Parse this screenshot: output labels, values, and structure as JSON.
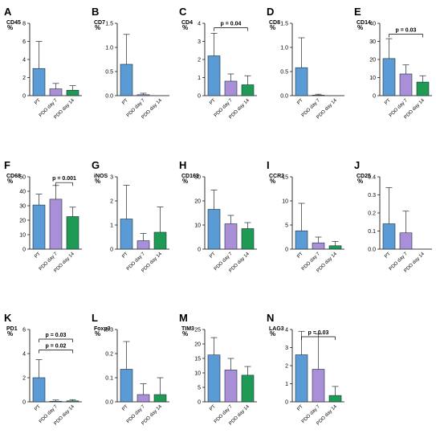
{
  "colors": {
    "PT": "#5b9bd5",
    "PDO day 7": "#a98ed8",
    "PDO day 14": "#1e9a55",
    "outline": "#1f2d3a",
    "axis": "#000000"
  },
  "chart_data": [
    {
      "letter": "A",
      "title": "CD45",
      "type": "bar",
      "ylabel": "%",
      "categories": [
        "PT",
        "PDO day 7",
        "PDO day 14"
      ],
      "ylim": [
        0,
        8
      ],
      "ticks": [
        0,
        2,
        4,
        6,
        8
      ],
      "values": [
        3.0,
        0.75,
        0.6
      ],
      "errors": [
        3.0,
        0.6,
        0.5
      ],
      "sig": []
    },
    {
      "letter": "B",
      "title": "CD7",
      "type": "bar",
      "ylabel": "%",
      "categories": [
        "PT",
        "PDO day 7",
        "PDO day 14"
      ],
      "ylim": [
        0,
        1.5
      ],
      "ticks": [
        "0.0",
        "0.5",
        "1.0",
        "1.5"
      ],
      "values": [
        0.65,
        0.02,
        0.0
      ],
      "errors": [
        0.62,
        0.03,
        0.0
      ],
      "sig": []
    },
    {
      "letter": "C",
      "title": "CD4",
      "type": "bar",
      "ylabel": "%",
      "categories": [
        "PT",
        "PDO day 7",
        "PDO day 14"
      ],
      "ylim": [
        0,
        4
      ],
      "ticks": [
        0,
        1,
        2,
        3,
        4
      ],
      "values": [
        2.2,
        0.8,
        0.6
      ],
      "errors": [
        1.25,
        0.4,
        0.5
      ],
      "sig": [
        {
          "label": "p = 0.04",
          "from": 0,
          "to": 2,
          "y": 3.75
        }
      ]
    },
    {
      "letter": "D",
      "title": "CD8",
      "type": "bar",
      "ylabel": "%",
      "categories": [
        "PT",
        "PDO day 7",
        "PDO day 14"
      ],
      "ylim": [
        0,
        1.5
      ],
      "ticks": [
        "0.0",
        "0.5",
        "1.0",
        "1.5"
      ],
      "values": [
        0.58,
        0.01,
        0.0
      ],
      "errors": [
        0.62,
        0.02,
        0.0
      ],
      "sig": []
    },
    {
      "letter": "E",
      "title": "CD14",
      "type": "bar",
      "ylabel": "%",
      "categories": [
        "PT",
        "PDO day 7",
        "PDO day 14"
      ],
      "ylim": [
        0,
        40
      ],
      "ticks": [
        0,
        10,
        20,
        30,
        40
      ],
      "values": [
        20.5,
        12.0,
        7.5
      ],
      "errors": [
        11.0,
        5.0,
        3.5
      ],
      "sig": [
        {
          "label": "p = 0.03",
          "from": 0,
          "to": 2,
          "y": 34
        }
      ]
    },
    {
      "letter": "F",
      "title": "CD68",
      "type": "bar",
      "ylabel": "%",
      "categories": [
        "PT",
        "PDO day 7",
        "PDO day 14"
      ],
      "ylim": [
        0,
        50
      ],
      "ticks": [
        0,
        10,
        20,
        30,
        40,
        50
      ],
      "values": [
        30.5,
        34.5,
        22.5
      ],
      "errors": [
        7.5,
        9.5,
        6.5
      ],
      "sig": [
        {
          "label": "p = 0.001",
          "from": 1,
          "to": 2,
          "y": 46
        }
      ]
    },
    {
      "letter": "G",
      "title": "iNOS",
      "type": "bar",
      "ylabel": "%",
      "categories": [
        "PT",
        "PDO day 7",
        "PDO day 14"
      ],
      "ylim": [
        0,
        3
      ],
      "ticks": [
        0,
        1,
        2,
        3
      ],
      "values": [
        1.25,
        0.35,
        0.7
      ],
      "errors": [
        1.4,
        0.3,
        1.05
      ],
      "sig": []
    },
    {
      "letter": "H",
      "title": "CD163",
      "type": "bar",
      "ylabel": "%",
      "categories": [
        "PT",
        "PDO day 7",
        "PDO day 14"
      ],
      "ylim": [
        0,
        30
      ],
      "ticks": [
        0,
        10,
        20,
        30
      ],
      "values": [
        16.5,
        10.5,
        8.5
      ],
      "errors": [
        8.0,
        3.5,
        2.5
      ],
      "sig": []
    },
    {
      "letter": "I",
      "title": "CCR2",
      "type": "bar",
      "ylabel": "%",
      "categories": [
        "PT",
        "PDO day 7",
        "PDO day 14"
      ],
      "ylim": [
        0,
        15
      ],
      "ticks": [
        0,
        5,
        10,
        15
      ],
      "values": [
        3.8,
        1.3,
        0.7
      ],
      "errors": [
        5.7,
        1.2,
        0.9
      ],
      "sig": []
    },
    {
      "letter": "J",
      "title": "CD25",
      "type": "bar",
      "ylabel": "%",
      "categories": [
        "PT",
        "PDO day 7",
        "PDO day 14"
      ],
      "ylim": [
        0,
        0.4
      ],
      "ticks": [
        "0.0",
        "0.1",
        "0.2",
        "0.3",
        "0.4"
      ],
      "values": [
        0.14,
        0.09,
        0.0
      ],
      "errors": [
        0.2,
        0.12,
        0.0
      ],
      "sig": []
    },
    {
      "letter": "K",
      "title": "PD1",
      "type": "bar",
      "ylabel": "%",
      "categories": [
        "PT",
        "PDO day 7",
        "PDO day 14"
      ],
      "ylim": [
        0,
        6
      ],
      "ticks": [
        0,
        2,
        4,
        6
      ],
      "values": [
        2.0,
        0.05,
        0.08
      ],
      "errors": [
        1.5,
        0.1,
        0.1
      ],
      "sig": [
        {
          "label": "p = 0.03",
          "from": 0,
          "to": 2,
          "y": 5.2
        },
        {
          "label": "p = 0.02",
          "from": 0,
          "to": 2,
          "y": 4.3
        }
      ]
    },
    {
      "letter": "L",
      "title": "Foxp3",
      "type": "bar",
      "ylabel": "%",
      "categories": [
        "PT",
        "PDO day 7",
        "PDO day 14"
      ],
      "ylim": [
        0,
        0.3
      ],
      "ticks": [
        "0.0",
        "0.1",
        "0.2",
        "0.3"
      ],
      "values": [
        0.135,
        0.03,
        0.03
      ],
      "errors": [
        0.115,
        0.045,
        0.07
      ],
      "sig": []
    },
    {
      "letter": "M",
      "title": "TIM3",
      "type": "bar",
      "ylabel": "%",
      "categories": [
        "PT",
        "PDO day 7",
        "PDO day 14"
      ],
      "ylim": [
        0,
        25
      ],
      "ticks": [
        0,
        5,
        10,
        15,
        20,
        25
      ],
      "values": [
        16.2,
        11.0,
        9.2
      ],
      "errors": [
        6.0,
        4.0,
        3.0
      ],
      "sig": []
    },
    {
      "letter": "N",
      "title": "LAG3",
      "type": "bar",
      "ylabel": "%",
      "categories": [
        "PT",
        "PDO day 7",
        "PDO day 14"
      ],
      "ylim": [
        0,
        4
      ],
      "ticks": [
        0,
        1,
        2,
        3,
        4
      ],
      "values": [
        2.6,
        1.8,
        0.35
      ],
      "errors": [
        1.3,
        1.95,
        0.5
      ],
      "sig": [
        {
          "label": "p = 0.03",
          "from": 0,
          "to": 2,
          "y": 3.6
        }
      ]
    }
  ]
}
